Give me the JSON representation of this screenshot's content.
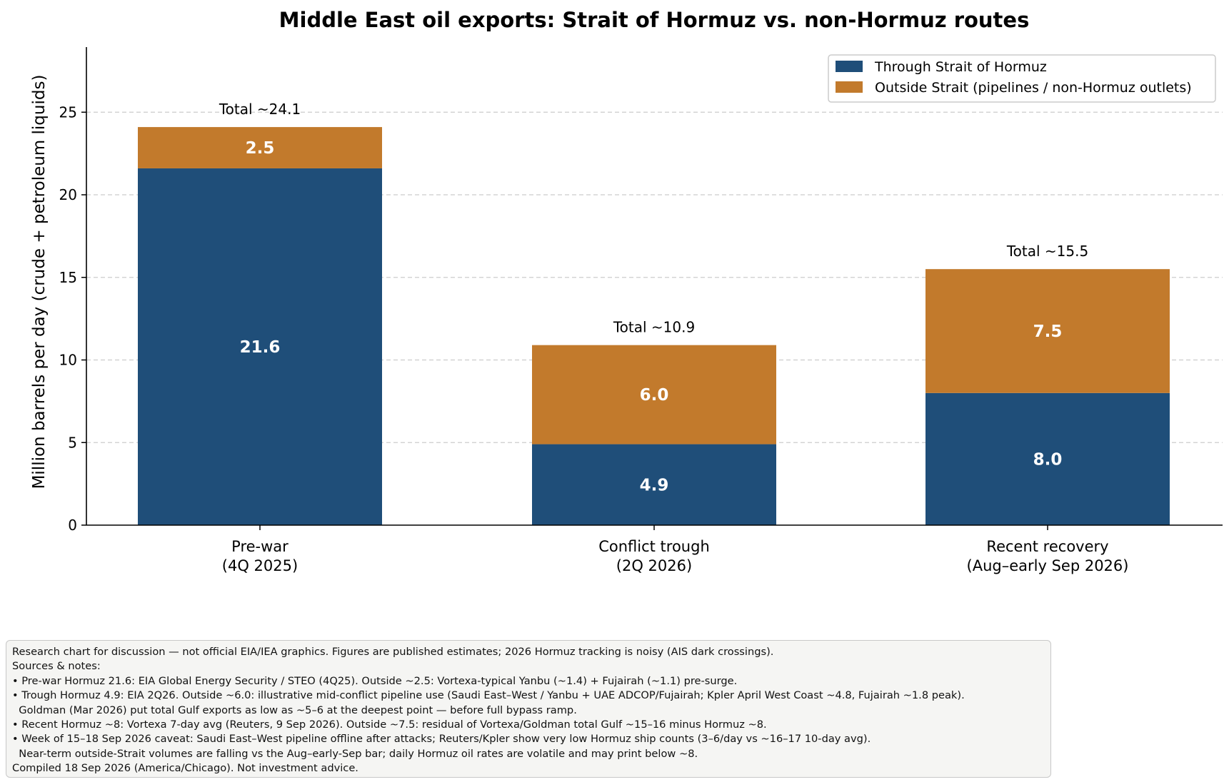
{
  "colors": {
    "hormuz": "#1f4e79",
    "outside": "#c27a2c",
    "segment_label": "#ffffff",
    "grid": "#cccccc",
    "axis": "#000000"
  },
  "chart_data": {
    "type": "bar",
    "stacked": true,
    "title": "Middle East oil exports: Strait of Hormuz vs. non-Hormuz routes",
    "ylabel": "Million barrels per day (crude + petroleum liquids)",
    "xlabel": "",
    "ylim": [
      0,
      29
    ],
    "yticks": [
      0,
      5,
      10,
      15,
      20,
      25
    ],
    "grid": "horizontal dashed",
    "legend_position": "top-right",
    "categories": [
      [
        "Pre-war",
        "(4Q 2025)"
      ],
      [
        "Conflict trough",
        "(2Q 2026)"
      ],
      [
        "Recent recovery",
        "(Aug–early Sep 2026)"
      ]
    ],
    "series": [
      {
        "name": "Through Strait of Hormuz",
        "color": "#1f4e79",
        "values": [
          21.6,
          4.9,
          8.0
        ],
        "labels": [
          "21.6",
          "4.9",
          "8.0"
        ]
      },
      {
        "name": "Outside Strait (pipelines / non-Hormuz outlets)",
        "color": "#c27a2c",
        "values": [
          2.5,
          6.0,
          7.5
        ],
        "labels": [
          "2.5",
          "6.0",
          "7.5"
        ]
      }
    ],
    "totals": [
      24.1,
      10.9,
      15.5
    ],
    "total_labels": [
      "Total ~24.1",
      "Total ~10.9",
      "Total ~15.5"
    ]
  },
  "notes": {
    "lines": [
      "Research chart for discussion — not official EIA/IEA graphics. Figures are published estimates; 2026 Hormuz tracking is noisy (AIS dark crossings).",
      "Sources & notes:",
      "• Pre-war Hormuz 21.6: EIA Global Energy Security / STEO (4Q25). Outside ~2.5: Vortexa-typical Yanbu (~1.4) + Fujairah (~1.1) pre-surge.",
      "• Trough Hormuz 4.9: EIA 2Q26. Outside ~6.0: illustrative mid-conflict pipeline use (Saudi East–West / Yanbu + UAE ADCOP/Fujairah; Kpler April West Coast ~4.8, Fujairah ~1.8 peak).",
      "  Goldman (Mar 2026) put total Gulf exports as low as ~5–6 at the deepest point — before full bypass ramp.",
      "• Recent Hormuz ~8: Vortexa 7-day avg (Reuters, 9 Sep 2026). Outside ~7.5: residual of Vortexa/Goldman total Gulf ~15–16 minus Hormuz ~8.",
      "• Week of 15–18 Sep 2026 caveat: Saudi East–West pipeline offline after attacks; Reuters/Kpler show very low Hormuz ship counts (3–6/day vs ~16–17 10-day avg).",
      "  Near-term outside-Strait volumes are falling vs the Aug–early-Sep bar; daily Hormuz oil rates are volatile and may print below ~8.",
      "Compiled 18 Sep 2026 (America/Chicago). Not investment advice."
    ]
  }
}
